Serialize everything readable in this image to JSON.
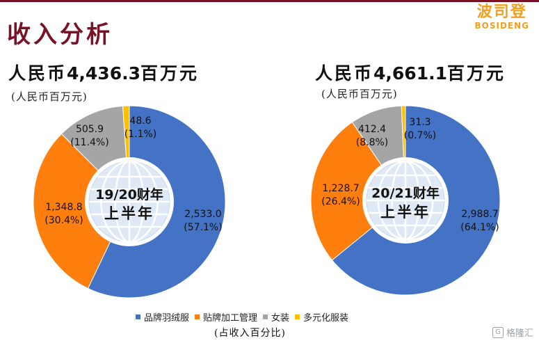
{
  "header": {
    "title": "收入分析",
    "logo_cn": "波司登",
    "logo_en": "BOSIDENG"
  },
  "footnote": "(占收入百分比)",
  "watermark": "格隆汇",
  "colors": {
    "brand_dark_red": "#7a1226",
    "logo_orange": "#f0a01e",
    "series": [
      "#4472c4",
      "#ff7f0e",
      "#a5a5a5",
      "#ffc000"
    ]
  },
  "chart_data": [
    {
      "type": "pie",
      "donut": true,
      "total_prefix": "人民币",
      "total_value": "4,436.3",
      "total_suffix": "百万元",
      "unit_label": "(人民币百万元)",
      "center_label": [
        "19/20财年",
        "上半年"
      ],
      "categories": [
        "品牌羽绒服",
        "贴牌加工管理",
        "女装",
        "多元化服装"
      ],
      "values": [
        2533.0,
        1348.8,
        505.9,
        48.6
      ],
      "value_labels": [
        "2,533.0",
        "1,348.8",
        "505.9",
        "48.6"
      ],
      "percent_labels": [
        "(57.1%)",
        "(30.4%)",
        "(11.4%)",
        "(1.1%)"
      ]
    },
    {
      "type": "pie",
      "donut": true,
      "total_prefix": "人民币",
      "total_value": "4,661.1",
      "total_suffix": "百万元",
      "unit_label": "(人民币百万元)",
      "center_label": [
        "20/21财年",
        "上半年"
      ],
      "categories": [
        "品牌羽绒服",
        "贴牌加工管理",
        "女装",
        "多元化服装"
      ],
      "values": [
        2988.7,
        1228.7,
        412.4,
        31.3
      ],
      "value_labels": [
        "2,988.7",
        "1,228.7",
        "412.4",
        "31.3"
      ],
      "percent_labels": [
        "(64.1%)",
        "(26.4%)",
        "(8.8%)",
        "(0.7%)"
      ]
    }
  ],
  "legend": {
    "items": [
      "品牌羽绒服",
      "贴牌加工管理",
      "女装",
      "多元化服装"
    ]
  }
}
